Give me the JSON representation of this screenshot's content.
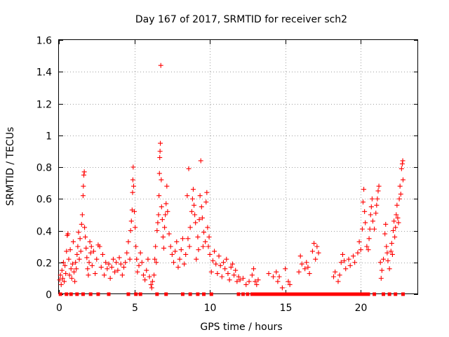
{
  "chart_data": {
    "type": "scatter",
    "title": "Day 167 of 2017, SRMTID for receiver sch2",
    "xlabel": "GPS time / hours",
    "ylabel": "SRMTID / TECUs",
    "xlim": [
      0,
      23.8
    ],
    "ylim": [
      0,
      1.6
    ],
    "x_ticks": [
      0,
      5,
      10,
      15,
      20
    ],
    "x_tick_labels": [
      "0",
      "5",
      "10",
      "15",
      "20"
    ],
    "y_ticks": [
      0,
      0.2,
      0.4,
      0.6,
      0.8,
      1.0,
      1.2,
      1.4,
      1.6
    ],
    "y_tick_labels": [
      "0",
      "0.2",
      "0.4",
      "0.6",
      "0.8",
      "1",
      "1.2",
      "1.4",
      "1.6"
    ],
    "grid": true,
    "marker": "+",
    "series": [
      {
        "name": "SRMTID",
        "color": "#ff0000",
        "points": [
          [
            0.05,
            0.09
          ],
          [
            0.1,
            0.12
          ],
          [
            0.15,
            0.06
          ],
          [
            0.2,
            0.15
          ],
          [
            0.25,
            0.1
          ],
          [
            0.3,
            0.2
          ],
          [
            0.35,
            0.08
          ],
          [
            0.4,
            0.18
          ],
          [
            0.45,
            0.13
          ],
          [
            0.5,
            0.27
          ],
          [
            0.55,
            0.37
          ],
          [
            0.6,
            0.38
          ],
          [
            0.65,
            0.22
          ],
          [
            0.7,
            0.12
          ],
          [
            0.75,
            0.28
          ],
          [
            0.8,
            0.16
          ],
          [
            0.85,
            0.1
          ],
          [
            0.9,
            0.19
          ],
          [
            0.95,
            0.33
          ],
          [
            1.0,
            0.14
          ],
          [
            1.05,
            0.08
          ],
          [
            1.1,
            0.2
          ],
          [
            1.15,
            0.16
          ],
          [
            1.2,
            0.25
          ],
          [
            1.25,
            0.3
          ],
          [
            1.3,
            0.39
          ],
          [
            1.35,
            0.22
          ],
          [
            1.4,
            0.35
          ],
          [
            1.45,
            0.27
          ],
          [
            1.5,
            0.44
          ],
          [
            1.55,
            0.5
          ],
          [
            1.6,
            0.62
          ],
          [
            1.62,
            0.68
          ],
          [
            1.65,
            0.75
          ],
          [
            1.68,
            0.77
          ],
          [
            1.7,
            0.42
          ],
          [
            1.75,
            0.36
          ],
          [
            1.8,
            0.29
          ],
          [
            1.85,
            0.23
          ],
          [
            1.9,
            0.16
          ],
          [
            1.95,
            0.12
          ],
          [
            2.0,
            0.2
          ],
          [
            2.05,
            0.33
          ],
          [
            2.1,
            0.26
          ],
          [
            2.15,
            0.3
          ],
          [
            2.2,
            0.18
          ],
          [
            2.3,
            0.27
          ],
          [
            2.4,
            0.13
          ],
          [
            2.5,
            0.22
          ],
          [
            2.6,
            0.31
          ],
          [
            2.7,
            0.3
          ],
          [
            2.8,
            0.17
          ],
          [
            2.9,
            0.25
          ],
          [
            3.0,
            0.12
          ],
          [
            3.1,
            0.2
          ],
          [
            3.2,
            0.16
          ],
          [
            3.3,
            0.19
          ],
          [
            3.4,
            0.1
          ],
          [
            3.5,
            0.17
          ],
          [
            3.6,
            0.22
          ],
          [
            3.7,
            0.14
          ],
          [
            3.8,
            0.2
          ],
          [
            3.9,
            0.15
          ],
          [
            4.0,
            0.23
          ],
          [
            4.1,
            0.19
          ],
          [
            4.2,
            0.12
          ],
          [
            4.3,
            0.17
          ],
          [
            4.4,
            0.2
          ],
          [
            4.5,
            0.26
          ],
          [
            4.6,
            0.33
          ],
          [
            4.7,
            0.22
          ],
          [
            4.75,
            0.4
          ],
          [
            4.8,
            0.46
          ],
          [
            4.85,
            0.53
          ],
          [
            4.88,
            0.64
          ],
          [
            4.9,
            0.72
          ],
          [
            4.92,
            0.8
          ],
          [
            4.95,
            0.68
          ],
          [
            5.0,
            0.52
          ],
          [
            5.05,
            0.42
          ],
          [
            5.1,
            0.3
          ],
          [
            5.15,
            0.22
          ],
          [
            5.2,
            0.14
          ],
          [
            5.3,
            0.18
          ],
          [
            5.4,
            0.26
          ],
          [
            5.5,
            0.2
          ],
          [
            5.6,
            0.12
          ],
          [
            5.7,
            0.09
          ],
          [
            5.8,
            0.15
          ],
          [
            5.9,
            0.22
          ],
          [
            6.0,
            0.11
          ],
          [
            6.1,
            0.06
          ],
          [
            6.15,
            0.04
          ],
          [
            6.2,
            0.08
          ],
          [
            6.3,
            0.12
          ],
          [
            6.35,
            0.22
          ],
          [
            6.4,
            0.3
          ],
          [
            6.45,
            0.2
          ],
          [
            6.5,
            0.4
          ],
          [
            6.55,
            0.45
          ],
          [
            6.6,
            0.5
          ],
          [
            6.63,
            0.62
          ],
          [
            6.66,
            0.76
          ],
          [
            6.68,
            0.86
          ],
          [
            6.7,
            0.9
          ],
          [
            6.72,
            0.95
          ],
          [
            6.75,
            1.44
          ],
          [
            6.78,
            0.72
          ],
          [
            6.8,
            0.55
          ],
          [
            6.85,
            0.47
          ],
          [
            6.9,
            0.36
          ],
          [
            6.95,
            0.29
          ],
          [
            7.0,
            0.42
          ],
          [
            7.05,
            0.5
          ],
          [
            7.1,
            0.57
          ],
          [
            7.15,
            0.68
          ],
          [
            7.2,
            0.52
          ],
          [
            7.3,
            0.38
          ],
          [
            7.4,
            0.3
          ],
          [
            7.5,
            0.25
          ],
          [
            7.6,
            0.2
          ],
          [
            7.7,
            0.27
          ],
          [
            7.8,
            0.33
          ],
          [
            7.9,
            0.17
          ],
          [
            8.0,
            0.22
          ],
          [
            8.1,
            0.28
          ],
          [
            8.2,
            0.35
          ],
          [
            8.3,
            0.19
          ],
          [
            8.4,
            0.25
          ],
          [
            8.5,
            0.62
          ],
          [
            8.55,
            0.35
          ],
          [
            8.6,
            0.79
          ],
          [
            8.65,
            0.3
          ],
          [
            8.7,
            0.42
          ],
          [
            8.8,
            0.52
          ],
          [
            8.85,
            0.6
          ],
          [
            8.9,
            0.66
          ],
          [
            8.95,
            0.56
          ],
          [
            9.0,
            0.5
          ],
          [
            9.05,
            0.45
          ],
          [
            9.1,
            0.22
          ],
          [
            9.2,
            0.36
          ],
          [
            9.25,
            0.28
          ],
          [
            9.3,
            0.47
          ],
          [
            9.35,
            0.62
          ],
          [
            9.4,
            0.84
          ],
          [
            9.45,
            0.55
          ],
          [
            9.5,
            0.48
          ],
          [
            9.55,
            0.3
          ],
          [
            9.6,
            0.39
          ],
          [
            9.7,
            0.33
          ],
          [
            9.75,
            0.58
          ],
          [
            9.8,
            0.64
          ],
          [
            9.85,
            0.42
          ],
          [
            9.9,
            0.3
          ],
          [
            9.95,
            0.36
          ],
          [
            10.0,
            0.25
          ],
          [
            10.1,
            0.14
          ],
          [
            10.2,
            0.21
          ],
          [
            10.3,
            0.27
          ],
          [
            10.4,
            0.19
          ],
          [
            10.5,
            0.13
          ],
          [
            10.6,
            0.24
          ],
          [
            10.7,
            0.18
          ],
          [
            10.8,
            0.11
          ],
          [
            10.9,
            0.2
          ],
          [
            11.0,
            0.16
          ],
          [
            11.1,
            0.22
          ],
          [
            11.2,
            0.13
          ],
          [
            11.3,
            0.09
          ],
          [
            11.4,
            0.17
          ],
          [
            11.5,
            0.19
          ],
          [
            11.6,
            0.12
          ],
          [
            11.7,
            0.15
          ],
          [
            11.8,
            0.08
          ],
          [
            11.9,
            0.11
          ],
          [
            12.0,
            0.09
          ],
          [
            12.2,
            0.1
          ],
          [
            12.4,
            0.06
          ],
          [
            12.6,
            0.08
          ],
          [
            12.8,
            0.12
          ],
          [
            12.9,
            0.16
          ],
          [
            13.0,
            0.08
          ],
          [
            13.1,
            0.06
          ],
          [
            13.2,
            0.09
          ],
          [
            13.9,
            0.13
          ],
          [
            14.2,
            0.11
          ],
          [
            14.4,
            0.14
          ],
          [
            14.5,
            0.08
          ],
          [
            14.6,
            0.11
          ],
          [
            14.8,
            0.04
          ],
          [
            15.0,
            0.16
          ],
          [
            15.2,
            0.08
          ],
          [
            15.3,
            0.06
          ],
          [
            15.9,
            0.14
          ],
          [
            16.0,
            0.24
          ],
          [
            16.1,
            0.19
          ],
          [
            16.3,
            0.16
          ],
          [
            16.4,
            0.2
          ],
          [
            16.5,
            0.17
          ],
          [
            16.6,
            0.13
          ],
          [
            16.8,
            0.27
          ],
          [
            16.9,
            0.32
          ],
          [
            17.0,
            0.22
          ],
          [
            17.1,
            0.3
          ],
          [
            17.2,
            0.26
          ],
          [
            18.2,
            0.11
          ],
          [
            18.3,
            0.14
          ],
          [
            18.5,
            0.08
          ],
          [
            18.6,
            0.12
          ],
          [
            18.7,
            0.2
          ],
          [
            18.8,
            0.25
          ],
          [
            18.9,
            0.21
          ],
          [
            19.0,
            0.16
          ],
          [
            19.2,
            0.22
          ],
          [
            19.3,
            0.18
          ],
          [
            19.5,
            0.24
          ],
          [
            19.6,
            0.2
          ],
          [
            19.8,
            0.26
          ],
          [
            19.9,
            0.33
          ],
          [
            20.0,
            0.28
          ],
          [
            20.1,
            0.41
          ],
          [
            20.15,
            0.58
          ],
          [
            20.2,
            0.66
          ],
          [
            20.25,
            0.52
          ],
          [
            20.3,
            0.45
          ],
          [
            20.4,
            0.3
          ],
          [
            20.5,
            0.28
          ],
          [
            20.55,
            0.35
          ],
          [
            20.6,
            0.41
          ],
          [
            20.65,
            0.5
          ],
          [
            20.7,
            0.55
          ],
          [
            20.75,
            0.6
          ],
          [
            20.8,
            0.46
          ],
          [
            20.9,
            0.41
          ],
          [
            21.0,
            0.51
          ],
          [
            21.05,
            0.56
          ],
          [
            21.1,
            0.6
          ],
          [
            21.15,
            0.65
          ],
          [
            21.2,
            0.68
          ],
          [
            21.3,
            0.2
          ],
          [
            21.35,
            0.1
          ],
          [
            21.4,
            0.15
          ],
          [
            21.5,
            0.22
          ],
          [
            21.6,
            0.38
          ],
          [
            21.65,
            0.44
          ],
          [
            21.7,
            0.3
          ],
          [
            21.75,
            0.26
          ],
          [
            21.8,
            0.21
          ],
          [
            21.9,
            0.16
          ],
          [
            22.0,
            0.27
          ],
          [
            22.05,
            0.32
          ],
          [
            22.1,
            0.25
          ],
          [
            22.15,
            0.4
          ],
          [
            22.2,
            0.46
          ],
          [
            22.25,
            0.36
          ],
          [
            22.3,
            0.42
          ],
          [
            22.35,
            0.5
          ],
          [
            22.4,
            0.56
          ],
          [
            22.45,
            0.48
          ],
          [
            22.5,
            0.45
          ],
          [
            22.55,
            0.6
          ],
          [
            22.6,
            0.68
          ],
          [
            22.65,
            0.63
          ],
          [
            22.7,
            0.79
          ],
          [
            22.75,
            0.82
          ],
          [
            22.78,
            0.84
          ],
          [
            22.8,
            0.72
          ]
        ]
      },
      {
        "name": "flagged",
        "color": "#ff0000",
        "y": 0,
        "x": [
          0.1,
          0.5,
          0.8,
          1.2,
          1.6,
          2.1,
          2.6,
          3.3,
          4.6,
          5.1,
          5.4,
          6.5,
          7.1,
          8.2,
          8.7,
          9.2,
          9.6,
          10.1,
          11.9,
          12.2,
          12.5,
          12.8,
          12.95,
          13.1,
          13.3,
          13.5,
          13.7,
          13.9,
          14.1,
          14.3,
          14.5,
          14.7,
          14.9,
          15.1,
          15.3,
          15.5,
          15.7,
          15.9,
          16.1,
          16.3,
          16.5,
          16.7,
          16.9,
          17.1,
          17.3,
          17.5,
          17.7,
          17.9,
          18.1,
          18.3,
          18.5,
          18.7,
          18.9,
          19.1,
          19.3,
          19.5,
          19.7,
          19.9,
          20.1,
          20.3,
          20.5,
          20.9,
          21.5,
          21.9,
          22.3,
          22.8
        ]
      }
    ]
  }
}
